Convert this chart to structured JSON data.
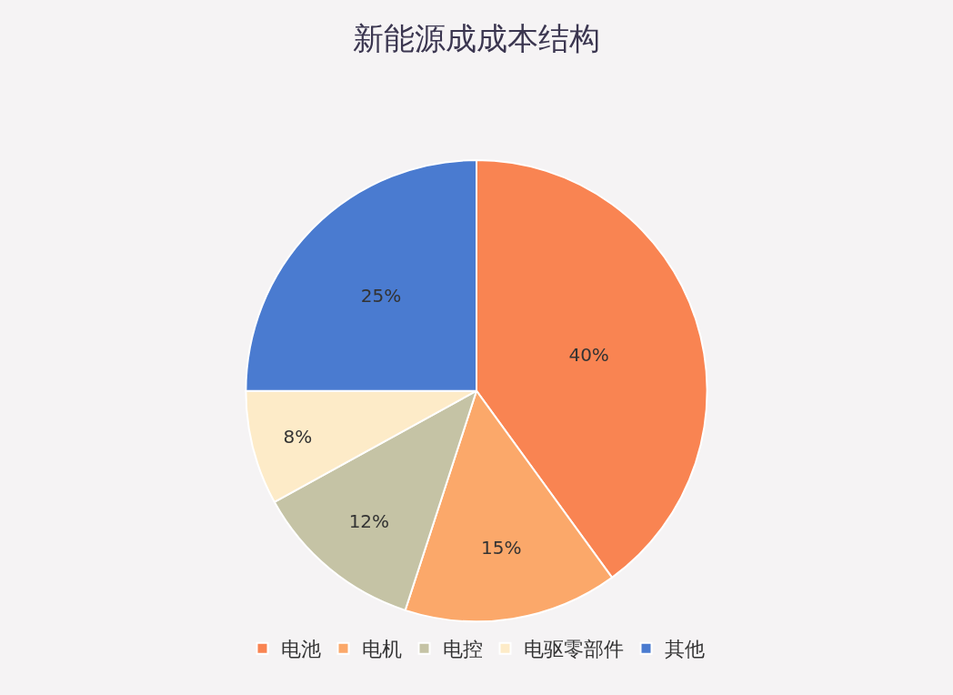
{
  "chart_data": {
    "type": "pie",
    "title": "新能源成成本结构",
    "categories": [
      "电池",
      "电机",
      "电控",
      "电驱零部件",
      "其他"
    ],
    "values": [
      40,
      15,
      12,
      8,
      25
    ],
    "value_labels": [
      "40%",
      "15%",
      "12%",
      "8%",
      "25%"
    ],
    "colors": [
      "#f98452",
      "#fba86a",
      "#c5c3a5",
      "#fdebc8",
      "#4a7bd0"
    ],
    "legend": "bottom"
  }
}
